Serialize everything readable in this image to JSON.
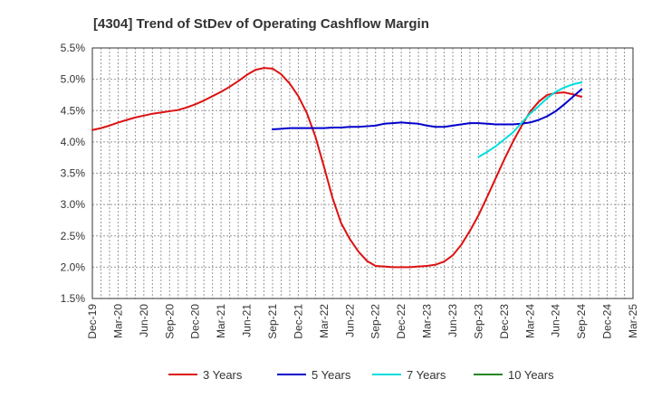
{
  "chart_data": {
    "type": "line",
    "title": "[4304]  Trend of StDev of Operating Cashflow Margin",
    "y_tick_labels": [
      "5.5%",
      "5.0%",
      "4.5%",
      "4.0%",
      "3.5%",
      "3.0%",
      "2.5%",
      "2.0%",
      "1.5%"
    ],
    "ylim": [
      1.5,
      5.5
    ],
    "x_tick_labels": [
      "Dec-19",
      "Mar-20",
      "Jun-20",
      "Sep-20",
      "Dec-20",
      "Mar-21",
      "Jun-21",
      "Sep-21",
      "Dec-21",
      "Mar-22",
      "Jun-22",
      "Sep-22",
      "Dec-22",
      "Mar-23",
      "Jun-23",
      "Sep-23",
      "Dec-23",
      "Mar-24",
      "Jun-24",
      "Sep-24",
      "Dec-24",
      "Mar-25"
    ],
    "x_months": [
      "2019-12",
      "2020-01",
      "2020-02",
      "2020-03",
      "2020-04",
      "2020-05",
      "2020-06",
      "2020-07",
      "2020-08",
      "2020-09",
      "2020-10",
      "2020-11",
      "2020-12",
      "2021-01",
      "2021-02",
      "2021-03",
      "2021-04",
      "2021-05",
      "2021-06",
      "2021-07",
      "2021-08",
      "2021-09",
      "2021-10",
      "2021-11",
      "2021-12",
      "2022-01",
      "2022-02",
      "2022-03",
      "2022-04",
      "2022-05",
      "2022-06",
      "2022-07",
      "2022-08",
      "2022-09",
      "2022-10",
      "2022-11",
      "2022-12",
      "2023-01",
      "2023-02",
      "2023-03",
      "2023-04",
      "2023-05",
      "2023-06",
      "2023-07",
      "2023-08",
      "2023-09",
      "2023-10",
      "2023-11",
      "2023-12",
      "2024-01",
      "2024-02",
      "2024-03",
      "2024-04",
      "2024-05",
      "2024-06",
      "2024-07",
      "2024-08",
      "2024-09",
      "2024-10",
      "2024-11",
      "2024-12",
      "2025-01",
      "2025-02",
      "2025-03"
    ],
    "grid": true,
    "legend_position": "bottom",
    "series": [
      {
        "name": "3 Years",
        "color": "#dd1111",
        "values": [
          4.19,
          4.22,
          4.26,
          4.31,
          4.35,
          4.39,
          4.42,
          4.45,
          4.47,
          4.49,
          4.51,
          4.55,
          4.6,
          4.66,
          4.73,
          4.8,
          4.88,
          4.97,
          5.07,
          5.15,
          5.18,
          5.17,
          5.08,
          4.93,
          4.73,
          4.46,
          4.08,
          3.6,
          3.1,
          2.7,
          2.45,
          2.25,
          2.1,
          2.02,
          2.01,
          2.0,
          2.0,
          2.0,
          2.01,
          2.02,
          2.04,
          2.09,
          2.19,
          2.36,
          2.58,
          2.83,
          3.12,
          3.42,
          3.72,
          4.0,
          4.25,
          4.48,
          4.64,
          4.75,
          4.78,
          4.79,
          4.76,
          4.72,
          null,
          null,
          null,
          null,
          null,
          null
        ]
      },
      {
        "name": "5 Years",
        "color": "#0000cc",
        "values": [
          null,
          null,
          null,
          null,
          null,
          null,
          null,
          null,
          null,
          null,
          null,
          null,
          null,
          null,
          null,
          null,
          null,
          null,
          null,
          null,
          null,
          4.2,
          4.21,
          4.22,
          4.22,
          4.22,
          4.22,
          4.22,
          4.23,
          4.23,
          4.24,
          4.24,
          4.25,
          4.26,
          4.29,
          4.3,
          4.31,
          4.3,
          4.29,
          4.26,
          4.24,
          4.24,
          4.26,
          4.28,
          4.3,
          4.3,
          4.29,
          4.28,
          4.28,
          4.28,
          4.29,
          4.31,
          4.35,
          4.41,
          4.49,
          4.6,
          4.72,
          4.84,
          null,
          null,
          null,
          null,
          null,
          null
        ]
      },
      {
        "name": "7 Years",
        "color": "#00dddd",
        "values": [
          null,
          null,
          null,
          null,
          null,
          null,
          null,
          null,
          null,
          null,
          null,
          null,
          null,
          null,
          null,
          null,
          null,
          null,
          null,
          null,
          null,
          null,
          null,
          null,
          null,
          null,
          null,
          null,
          null,
          null,
          null,
          null,
          null,
          null,
          null,
          null,
          null,
          null,
          null,
          null,
          null,
          null,
          null,
          null,
          null,
          3.76,
          3.84,
          3.93,
          4.04,
          4.15,
          4.3,
          4.45,
          4.57,
          4.7,
          4.8,
          4.87,
          4.92,
          4.95,
          null,
          null,
          null,
          null,
          null,
          null
        ]
      },
      {
        "name": "10 Years",
        "color": "#228822",
        "values": []
      }
    ]
  }
}
